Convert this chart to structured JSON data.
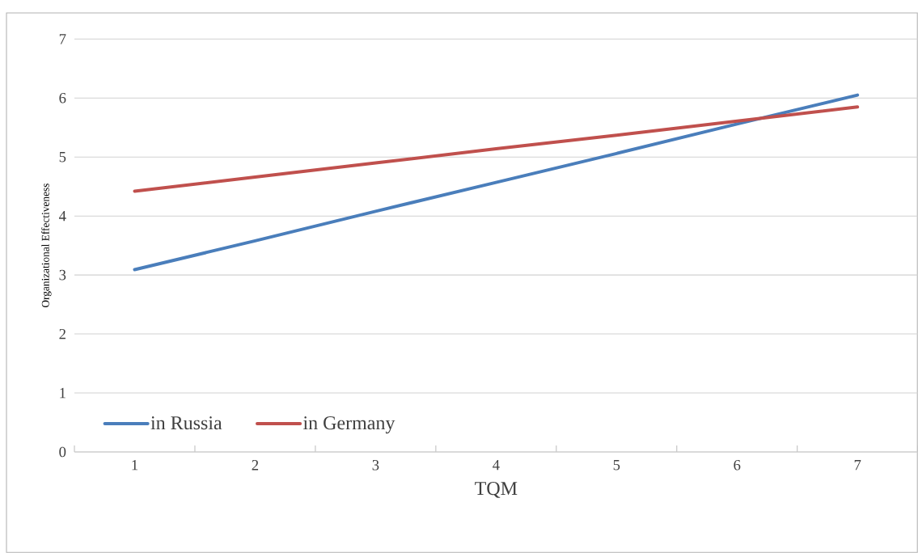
{
  "chart_data": {
    "type": "line",
    "xlabel": "TQM",
    "ylabel": "Organizational Effectiveness",
    "categories": [
      "1",
      "2",
      "3",
      "4",
      "5",
      "6",
      "7"
    ],
    "series": [
      {
        "name": "in Russia",
        "color": "#4a7ebb",
        "values": [
          3.09,
          3.58,
          4.08,
          4.57,
          5.06,
          5.56,
          6.05
        ]
      },
      {
        "name": "in Germany",
        "color": "#c0504d",
        "values": [
          4.42,
          4.66,
          4.9,
          5.14,
          5.37,
          5.61,
          5.85
        ]
      }
    ],
    "ylim": [
      0,
      7
    ],
    "yticks": [
      0,
      1,
      2,
      3,
      4,
      5,
      6,
      7
    ],
    "grid": "y",
    "legend": "bottom left",
    "marker": "none",
    "line_style": "solid"
  }
}
